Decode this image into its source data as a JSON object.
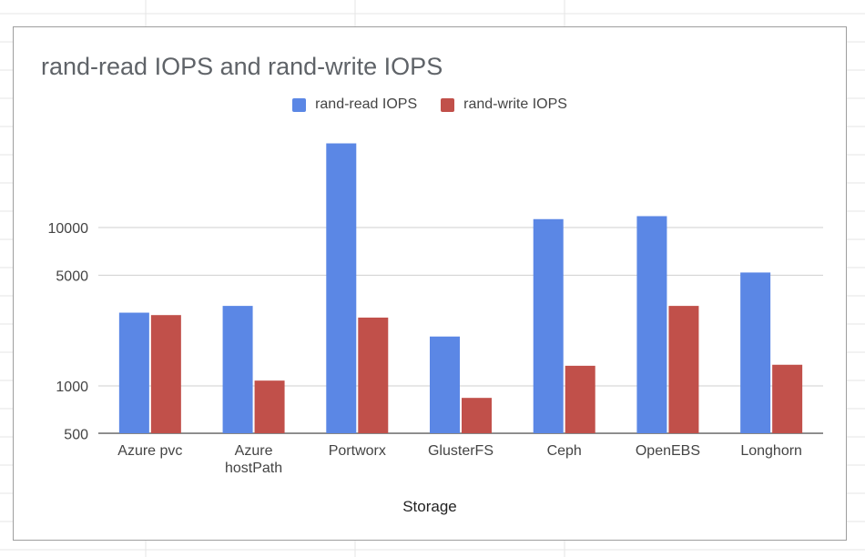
{
  "chart_data": {
    "type": "bar",
    "title": "rand-read IOPS and rand-write IOPS",
    "xlabel": "Storage",
    "ylabel": "",
    "yscale": "log",
    "ylim": [
      500,
      35000
    ],
    "yticks": [
      500,
      1000,
      5000,
      10000
    ],
    "ytick_labels": [
      "500",
      "1000",
      "5000",
      "10000"
    ],
    "grid": true,
    "legend_position": "top",
    "categories": [
      "Azure pvc",
      "Azure hostPath",
      "Portworx",
      "GlusterFS",
      "Ceph",
      "OpenEBS",
      "Longhorn"
    ],
    "category_lines": [
      [
        "Azure pvc"
      ],
      [
        "Azure",
        "hostPath"
      ],
      [
        "Portworx"
      ],
      [
        "GlusterFS"
      ],
      [
        "Ceph"
      ],
      [
        "OpenEBS"
      ],
      [
        "Longhorn"
      ]
    ],
    "series": [
      {
        "name": "rand-read IOPS",
        "color": "#5b87e5",
        "values": [
          2900,
          3200,
          34000,
          2050,
          11300,
          11800,
          5200
        ]
      },
      {
        "name": "rand-write IOPS",
        "color": "#c1504a",
        "values": [
          2800,
          1080,
          2700,
          840,
          1340,
          3200,
          1360
        ]
      }
    ]
  }
}
